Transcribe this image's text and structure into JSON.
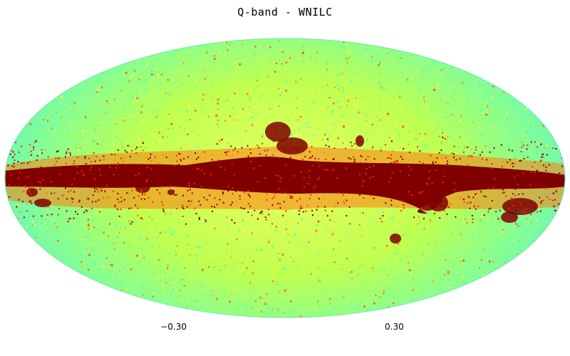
{
  "title": "Q-band - WNILC",
  "projection": "mollweide",
  "colormap": {
    "name": "jet",
    "stops": [
      "#00007f",
      "#0000ff",
      "#00bfff",
      "#40ffbf",
      "#bfff40",
      "#ffff00",
      "#ff8000",
      "#ff0000",
      "#7f0000"
    ],
    "min_label": "−0.30",
    "max_label": "0.30",
    "min": -0.3,
    "max": 0.3
  },
  "colors": {
    "background_field": "#7fffa0",
    "galactic_plane": "#800000",
    "speckle_yellow": "#ffff30",
    "speckle_orange": "#ff9000",
    "speckle_cyan": "#40ffe0"
  }
}
